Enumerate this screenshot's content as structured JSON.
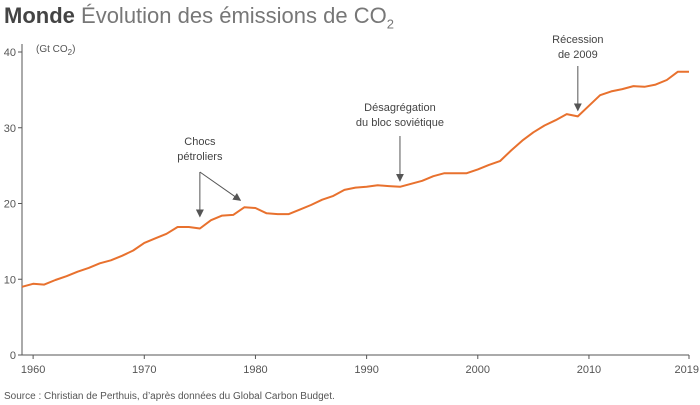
{
  "header": {
    "title_bold": "Monde",
    "title_rest": "Évolution des émissions de CO",
    "title_sub": "2"
  },
  "source": "Source : Christian de Perthuis, d’après données du Global Carbon Budget.",
  "colors": {
    "line": "#e8712e",
    "axis": "#555555",
    "arrow": "#555555"
  },
  "chart_data": {
    "type": "line",
    "title": "Monde Évolution des émissions de CO2",
    "ylabel": "(Gt CO2)",
    "ylabel_text": "(Gt CO",
    "ylabel_sub": "2",
    "ylabel_close": ")",
    "xlabel": "",
    "xlim": [
      1959,
      2019
    ],
    "ylim": [
      0,
      40
    ],
    "yticks": [
      0,
      10,
      20,
      30,
      40
    ],
    "xticks": [
      1960,
      1970,
      1980,
      1990,
      2000,
      2010,
      2019
    ],
    "x": [
      1959,
      1960,
      1961,
      1962,
      1963,
      1964,
      1965,
      1966,
      1967,
      1968,
      1969,
      1970,
      1971,
      1972,
      1973,
      1974,
      1975,
      1976,
      1977,
      1978,
      1979,
      1980,
      1981,
      1982,
      1983,
      1984,
      1985,
      1986,
      1987,
      1988,
      1989,
      1990,
      1991,
      1992,
      1993,
      1994,
      1995,
      1996,
      1997,
      1998,
      1999,
      2000,
      2001,
      2002,
      2003,
      2004,
      2005,
      2006,
      2007,
      2008,
      2009,
      2010,
      2011,
      2012,
      2013,
      2014,
      2015,
      2016,
      2017,
      2018,
      2019
    ],
    "series": [
      {
        "name": "Émissions de CO2",
        "values": [
          9.0,
          9.4,
          9.3,
          9.9,
          10.4,
          11.0,
          11.5,
          12.1,
          12.5,
          13.1,
          13.8,
          14.8,
          15.4,
          16.0,
          16.9,
          16.9,
          16.7,
          17.8,
          18.4,
          18.5,
          19.5,
          19.4,
          18.7,
          18.6,
          18.6,
          19.2,
          19.8,
          20.5,
          21.0,
          21.8,
          22.1,
          22.2,
          22.4,
          22.3,
          22.2,
          22.6,
          23.0,
          23.6,
          24.0,
          24.0,
          24.0,
          24.5,
          25.1,
          25.6,
          27.0,
          28.3,
          29.4,
          30.3,
          31.0,
          31.8,
          31.5,
          32.9,
          34.3,
          34.8,
          35.1,
          35.5,
          35.4,
          35.7,
          36.3,
          37.4,
          37.4
        ]
      }
    ],
    "annotations": [
      {
        "lines": [
          "Chocs",
          "pétroliers"
        ],
        "targets": [
          1975,
          1979
        ]
      },
      {
        "lines": [
          "Désagrégation",
          "du bloc soviétique"
        ],
        "targets": [
          1993
        ]
      },
      {
        "lines": [
          "Récession",
          "de 2009"
        ],
        "targets": [
          2009
        ]
      }
    ]
  }
}
